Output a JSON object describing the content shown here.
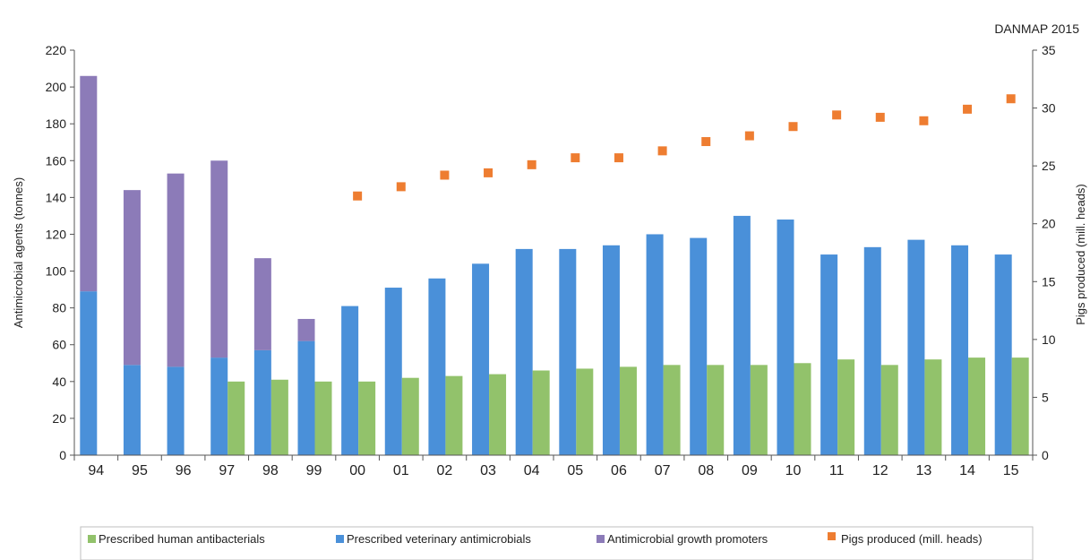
{
  "chart_data": {
    "type": "bar",
    "source_label": "DANMAP 2015",
    "ylabel": "Antimicrobial agents (tonnes)",
    "y2label": "Pigs produced (mill. heads)",
    "ylim": [
      0,
      220
    ],
    "y2lim": [
      0,
      35
    ],
    "yticks": [
      "0",
      "20",
      "40",
      "60",
      "80",
      "100",
      "120",
      "140",
      "160",
      "180",
      "200",
      "220"
    ],
    "y2ticks": [
      "0",
      "5",
      "10",
      "15",
      "20",
      "25",
      "30",
      "35"
    ],
    "categories": [
      "94",
      "95",
      "96",
      "97",
      "98",
      "99",
      "00",
      "01",
      "02",
      "03",
      "04",
      "05",
      "06",
      "07",
      "08",
      "09",
      "10",
      "11",
      "12",
      "13",
      "14",
      "15"
    ],
    "grid": false,
    "legend_position": "bottom",
    "series": [
      {
        "name": "Prescribed human antibacterials",
        "kind": "bar",
        "color": "#92c26b",
        "values": [
          null,
          null,
          null,
          40,
          41,
          40,
          40,
          42,
          43,
          44,
          46,
          47,
          48,
          49,
          49,
          49,
          50,
          52,
          49,
          52,
          53,
          53
        ]
      },
      {
        "name": "Prescribed veterinary antimicrobials",
        "kind": "stacked-bar",
        "color": "#4a90d9",
        "values": [
          89,
          49,
          48,
          53,
          57,
          62,
          81,
          91,
          96,
          104,
          112,
          112,
          114,
          120,
          118,
          130,
          128,
          109,
          113,
          117,
          114,
          109
        ]
      },
      {
        "name": "Antimicrobial growth promoters",
        "kind": "stacked-bar",
        "color": "#8c7bb8",
        "values": [
          117,
          95,
          105,
          107,
          50,
          12,
          0,
          0,
          0,
          0,
          0,
          0,
          0,
          0,
          0,
          0,
          0,
          0,
          0,
          0,
          0,
          0
        ]
      },
      {
        "name": "Pigs produced (mill. heads)",
        "kind": "marker",
        "axis": "right",
        "color": "#ee7d31",
        "values": [
          null,
          null,
          null,
          null,
          null,
          null,
          22.4,
          23.2,
          24.2,
          24.4,
          25.1,
          25.7,
          25.7,
          26.3,
          27.1,
          27.6,
          28.4,
          29.4,
          29.2,
          28.9,
          29.9,
          30.8
        ]
      }
    ]
  }
}
